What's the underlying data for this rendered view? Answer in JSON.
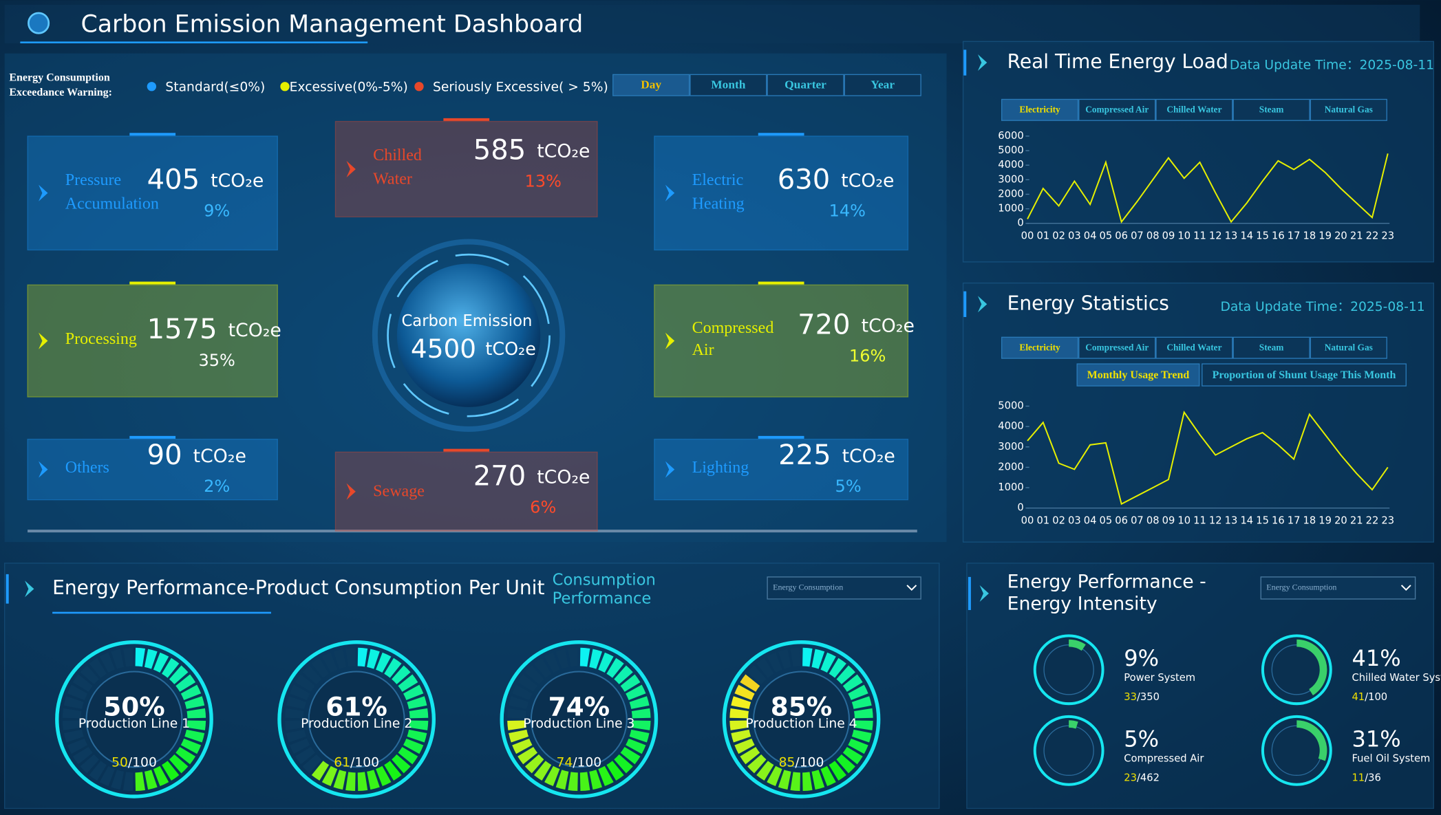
{
  "header": {
    "title": "Carbon Emission Management Dashboard"
  },
  "warning": {
    "label_lines": [
      "Energy Consumption",
      "Exceedance Warning:"
    ],
    "levels": [
      {
        "label": "Standard(≤0%)",
        "color": "#1e9bff"
      },
      {
        "label": "Excessive(0%-5%)",
        "color": "#e6f000"
      },
      {
        "label": "Seriously Excessive( > 5%)",
        "color": "#e8482a"
      }
    ]
  },
  "periods": {
    "tabs": [
      "Day",
      "Month",
      "Quarter",
      "Year"
    ],
    "active": 0
  },
  "emissions": {
    "unit": "tCO₂e",
    "total": {
      "label": "Carbon Emission",
      "value": 4500
    },
    "items": [
      {
        "name_lines": [
          "Pressure",
          "Accumulation"
        ],
        "value": 405,
        "share": "9%",
        "color": "#1e9bff"
      },
      {
        "name_lines": [
          "Chilled",
          "Water"
        ],
        "value": 585,
        "share": "13%",
        "color": "#e8482a"
      },
      {
        "name_lines": [
          "Electric",
          "Heating"
        ],
        "value": 630,
        "share": "14%",
        "color": "#1e9bff"
      },
      {
        "name_lines": [
          "Processing"
        ],
        "value": 1575,
        "share": "35%",
        "color": "#e6f000"
      },
      {
        "name_lines": [
          "Compressed",
          "Air"
        ],
        "value": 720,
        "share": "16%",
        "color": "#e6f000"
      },
      {
        "name_lines": [
          "Others"
        ],
        "value": 90,
        "share": "2%",
        "color": "#1e9bff"
      },
      {
        "name_lines": [
          "Sewage"
        ],
        "value": 270,
        "share": "6%",
        "color": "#e8482a"
      },
      {
        "name_lines": [
          "Lighting"
        ],
        "value": 225,
        "share": "5%",
        "color": "#1e9bff"
      }
    ]
  },
  "chart_data": [
    {
      "type": "line",
      "title": "Real Time Energy Load",
      "update": "Data Update Time：2025-08-11",
      "tabs": [
        "Electricity",
        "Compressed Air",
        "Chilled Water",
        "Steam",
        "Natural Gas"
      ],
      "active_tab": 0,
      "categories": [
        "00",
        "01",
        "02",
        "03",
        "04",
        "05",
        "06",
        "07",
        "08",
        "09",
        "10",
        "11",
        "12",
        "13",
        "14",
        "15",
        "16",
        "17",
        "18",
        "19",
        "20",
        "21",
        "22",
        "23"
      ],
      "series": [
        {
          "color": "#e6f000",
          "values": [
            300,
            2400,
            1200,
            2900,
            1300,
            4200,
            100,
            1500,
            3000,
            4500,
            3100,
            4200,
            2100,
            100,
            1400,
            2900,
            4300,
            3700,
            4400,
            3500,
            2400,
            1400,
            400,
            4800
          ]
        }
      ],
      "ylim": [
        0,
        6000
      ],
      "yticks": [
        0,
        1000,
        2000,
        3000,
        4000,
        5000,
        6000
      ]
    },
    {
      "type": "line",
      "title": "Energy Statistics",
      "update": "Data Update Time：2025-08-11",
      "tabs": [
        "Electricity",
        "Compressed Air",
        "Chilled Water",
        "Steam",
        "Natural Gas"
      ],
      "active_tab": 0,
      "subtabs": [
        "Monthly Usage Trend",
        "Proportion of Shunt Usage This Month"
      ],
      "active_subtab": 0,
      "categories": [
        "00",
        "01",
        "02",
        "03",
        "04",
        "05",
        "06",
        "07",
        "08",
        "09",
        "10",
        "11",
        "12",
        "13",
        "14",
        "15",
        "16",
        "17",
        "18",
        "19",
        "20",
        "21",
        "22",
        "23"
      ],
      "series": [
        {
          "color": "#e6f000",
          "values": [
            3300,
            4200,
            2200,
            1900,
            3100,
            3200,
            200,
            600,
            1000,
            1400,
            4700,
            3600,
            2600,
            3000,
            3400,
            3700,
            3100,
            2400,
            4600,
            3600,
            2600,
            1700,
            900,
            2000
          ]
        }
      ],
      "ylim": [
        0,
        5000
      ],
      "yticks": [
        0,
        1000,
        2000,
        3000,
        4000,
        5000
      ]
    }
  ],
  "performance": {
    "title": "Energy Performance-Product Consumption Per Unit",
    "subtitle_lines": [
      "Consumption",
      "Performance"
    ],
    "dropdown": "Energy Consumption",
    "separator": "/",
    "gauges": [
      {
        "percent": "50%",
        "name": "Production Line 1",
        "value": 50,
        "total": 100
      },
      {
        "percent": "61%",
        "name": "Production Line 2",
        "value": 61,
        "total": 100
      },
      {
        "percent": "74%",
        "name": "Production Line 3",
        "value": 74,
        "total": 100
      },
      {
        "percent": "85%",
        "name": "Production Line 4",
        "value": 85,
        "total": 100
      }
    ]
  },
  "intensity": {
    "title_lines": [
      "Energy Performance -",
      "Energy Intensity"
    ],
    "dropdown": "Energy Consumption",
    "separator": "/",
    "items": [
      {
        "percent": "9%",
        "name": "Power System",
        "value": 33,
        "total": 350
      },
      {
        "percent": "41%",
        "name": "Chilled Water System",
        "value": 41,
        "total": 100
      },
      {
        "percent": "5%",
        "name": "Compressed Air",
        "value": 23,
        "total": 462
      },
      {
        "percent": "31%",
        "name": "Fuel Oil System",
        "value": 11,
        "total": 36
      }
    ]
  }
}
